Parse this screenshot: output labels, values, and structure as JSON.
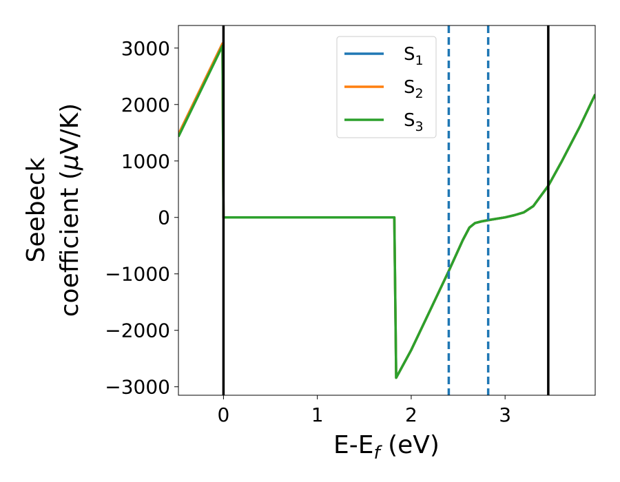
{
  "chart_data": {
    "type": "line",
    "xlabel": "E-E",
    "xlabel_sub": "f",
    "xlabel_unit": " (eV)",
    "ylabel_line1": "Seebeck",
    "ylabel_line2_prefix": "coefficient  (",
    "ylabel_mu": "μ",
    "ylabel_line2_suffix": "V/K)",
    "xlim": [
      -0.48,
      3.96
    ],
    "ylim": [
      -3150,
      3400
    ],
    "xticks": [
      0,
      1,
      2,
      3
    ],
    "xtick_labels": [
      "0",
      "1",
      "2",
      "3"
    ],
    "yticks": [
      3000,
      2000,
      1000,
      0,
      -1000,
      -2000,
      -3000
    ],
    "ytick_labels": [
      "3000",
      "2000",
      "1000",
      "0",
      "−1000",
      "−2000",
      "−3000"
    ],
    "legend_position": "upper-center",
    "vlines_solid": [
      0.0,
      3.46
    ],
    "vlines_dashed": [
      2.4,
      2.82
    ],
    "series": [
      {
        "name": "S",
        "sub": "1",
        "color": "#1f77b4",
        "points": [
          [
            -0.48,
            1470
          ],
          [
            -0.01,
            3080
          ],
          [
            0.0,
            0
          ],
          [
            1.82,
            0
          ],
          [
            1.84,
            -2840
          ],
          [
            2.0,
            -2350
          ],
          [
            2.2,
            -1650
          ],
          [
            2.4,
            -950
          ],
          [
            2.55,
            -400
          ],
          [
            2.62,
            -180
          ],
          [
            2.68,
            -100
          ],
          [
            2.75,
            -70
          ],
          [
            2.85,
            -40
          ],
          [
            3.0,
            0
          ],
          [
            3.1,
            40
          ],
          [
            3.2,
            90
          ],
          [
            3.3,
            200
          ],
          [
            3.38,
            380
          ],
          [
            3.46,
            560
          ],
          [
            3.6,
            980
          ],
          [
            3.8,
            1620
          ],
          [
            3.96,
            2180
          ]
        ]
      },
      {
        "name": "S",
        "sub": "2",
        "color": "#ff7f0e",
        "points": [
          [
            -0.48,
            1470
          ],
          [
            -0.01,
            3080
          ],
          [
            0.0,
            0
          ],
          [
            1.82,
            0
          ],
          [
            1.84,
            -2840
          ],
          [
            2.0,
            -2350
          ],
          [
            2.2,
            -1650
          ],
          [
            2.4,
            -950
          ],
          [
            2.55,
            -400
          ],
          [
            2.62,
            -180
          ],
          [
            2.68,
            -100
          ],
          [
            2.75,
            -70
          ],
          [
            2.85,
            -40
          ],
          [
            3.0,
            0
          ],
          [
            3.1,
            40
          ],
          [
            3.2,
            90
          ],
          [
            3.3,
            200
          ],
          [
            3.38,
            380
          ],
          [
            3.46,
            560
          ],
          [
            3.6,
            980
          ],
          [
            3.8,
            1620
          ],
          [
            3.96,
            2180
          ]
        ]
      },
      {
        "name": "S",
        "sub": "3",
        "color": "#2ca02c",
        "points": [
          [
            -0.48,
            1430
          ],
          [
            -0.01,
            3040
          ],
          [
            0.0,
            0
          ],
          [
            1.82,
            0
          ],
          [
            1.84,
            -2840
          ],
          [
            2.0,
            -2350
          ],
          [
            2.2,
            -1650
          ],
          [
            2.4,
            -950
          ],
          [
            2.55,
            -400
          ],
          [
            2.62,
            -180
          ],
          [
            2.68,
            -100
          ],
          [
            2.75,
            -70
          ],
          [
            2.85,
            -40
          ],
          [
            3.0,
            0
          ],
          [
            3.1,
            40
          ],
          [
            3.2,
            90
          ],
          [
            3.3,
            200
          ],
          [
            3.38,
            380
          ],
          [
            3.46,
            560
          ],
          [
            3.6,
            980
          ],
          [
            3.8,
            1620
          ],
          [
            3.96,
            2180
          ]
        ]
      }
    ],
    "dashed_color": "#1f77b4",
    "solid_vline_color": "#000000"
  }
}
